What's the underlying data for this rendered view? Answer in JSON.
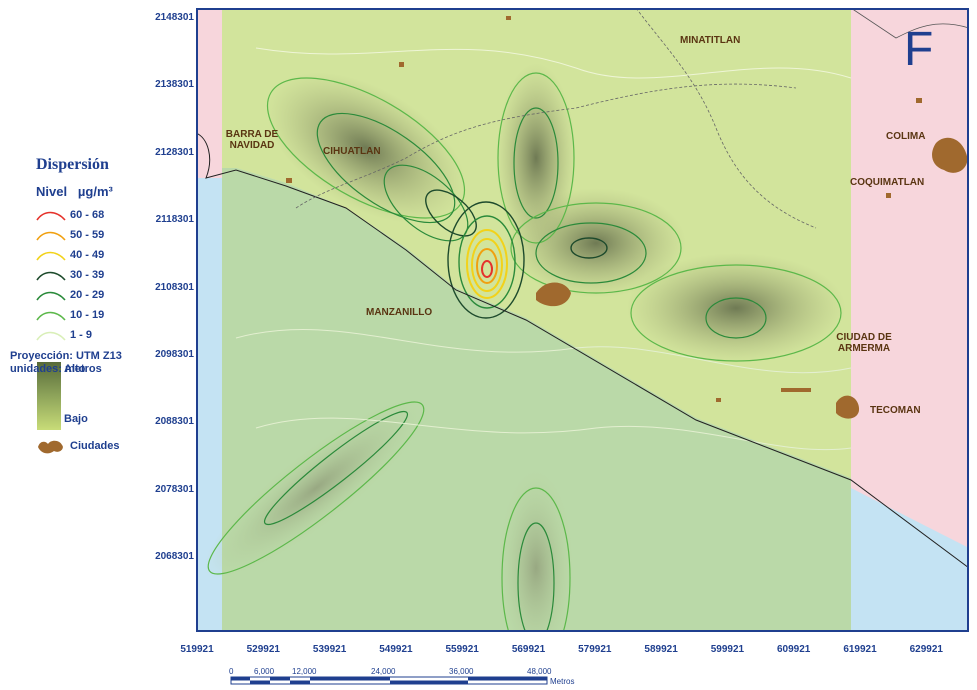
{
  "legend": {
    "title": "Dispersión",
    "subtitle_level": "Nivel",
    "subtitle_unit": "µg/m³",
    "items": [
      {
        "label": "60 - 68",
        "color": "#e5322b"
      },
      {
        "label": "50 - 59",
        "color": "#f0a010"
      },
      {
        "label": "40 - 49",
        "color": "#f2d21a"
      },
      {
        "label": "30 - 39",
        "color": "#1d4a2c"
      },
      {
        "label": "20 - 29",
        "color": "#2a8a3a"
      },
      {
        "label": "10 - 19",
        "color": "#5cb84a"
      },
      {
        "label": "1  -  9",
        "color": "#d9efb8"
      }
    ],
    "ramp_high": "Alto",
    "ramp_low": "Bajo",
    "cities_label": "Ciudades"
  },
  "projection": {
    "line1": "Proyección:  UTM Z13",
    "line2": "unidades:  metros"
  },
  "panel_letter": "F",
  "axes": {
    "y_ticks": [
      "2148301",
      "2138301",
      "2128301",
      "2118301",
      "2108301",
      "2098301",
      "2088301",
      "2078301",
      "2068301"
    ],
    "x_ticks": [
      "519921",
      "529921",
      "539921",
      "549921",
      "559921",
      "569921",
      "579921",
      "589921",
      "599921",
      "609921",
      "619921",
      "629921"
    ]
  },
  "places": [
    {
      "name": "MINATITLAN"
    },
    {
      "name": "BARRA DE NAVIDAD"
    },
    {
      "name": "CIHUATLAN"
    },
    {
      "name": "COLIMA"
    },
    {
      "name": "COQUIMATLAN"
    },
    {
      "name": "MANZANILLO"
    },
    {
      "name": "CIUDAD DE ARMERMA"
    },
    {
      "name": "TECOMAN"
    }
  ],
  "scale_bar": {
    "labels": [
      "0",
      "6,000",
      "12,000",
      "24,000",
      "36,000",
      "48,000"
    ],
    "unit": "Metros"
  },
  "colors": {
    "ocean": "#c4e3f3",
    "outside_state": "#f7d6dc",
    "land": "#cfe29a",
    "frame": "#1f3f8f",
    "city": "#a0692e"
  }
}
